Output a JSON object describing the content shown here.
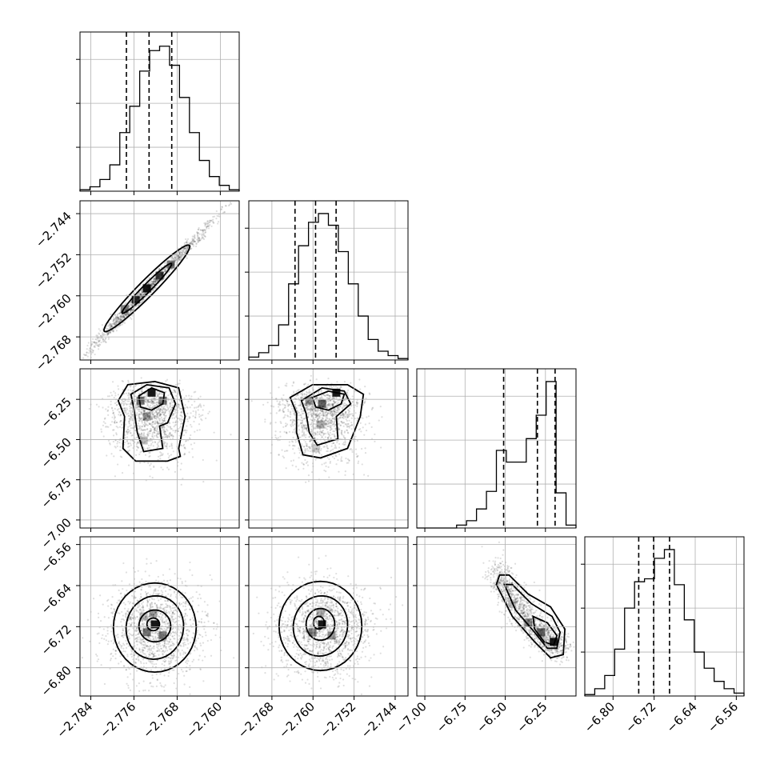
{
  "chart_data": {
    "type": "corner",
    "parameters": [
      {
        "index": 0,
        "range": [
          -2.786,
          -2.7565
        ],
        "ticks": [
          -2.784,
          -2.776,
          -2.768,
          -2.76
        ],
        "tick_labels": [
          "−2.784",
          "−2.776",
          "−2.768",
          "−2.760"
        ],
        "quantiles": [
          -2.7774,
          -2.7732,
          -2.769
        ],
        "mean": -2.7732,
        "sd": 0.0025,
        "hist_max": 1.0
      },
      {
        "index": 1,
        "range": [
          -2.7725,
          -2.7415
        ],
        "ticks": [
          -2.768,
          -2.76,
          -2.752,
          -2.744
        ],
        "tick_labels": [
          "−2.768",
          "−2.760",
          "−2.752",
          "−2.744"
        ],
        "quantiles": [
          -2.7635,
          -2.7595,
          -2.7555
        ],
        "mean": -2.7597,
        "sd": 0.0039,
        "hist_max": 1.0
      },
      {
        "index": 2,
        "range": [
          -7.05,
          -6.06
        ],
        "ticks": [
          -7.0,
          -6.75,
          -6.5,
          -6.25
        ],
        "tick_labels": [
          "−7.00",
          "−6.75",
          "−6.50",
          "−6.25"
        ],
        "quantiles": [
          -6.51,
          -6.3,
          -6.19
        ],
        "hist_max": 1.0
      },
      {
        "index": 3,
        "range": [
          -6.855,
          -6.545
        ],
        "ticks": [
          -6.8,
          -6.72,
          -6.64,
          -6.56
        ],
        "tick_labels": [
          "−6.80",
          "−6.72",
          "−6.64",
          "−6.56"
        ],
        "quantiles": [
          -6.75,
          -6.721,
          -6.69
        ],
        "mean": -6.72,
        "sd": 0.035,
        "hist_max": 1.0
      }
    ],
    "histograms": [
      {
        "param": 0,
        "counts": [
          0.01,
          0.03,
          0.08,
          0.18,
          0.4,
          0.58,
          0.82,
          0.96,
          0.99,
          0.86,
          0.64,
          0.4,
          0.21,
          0.1,
          0.04,
          0.01
        ]
      },
      {
        "param": 1,
        "counts": [
          0.02,
          0.05,
          0.1,
          0.24,
          0.52,
          0.78,
          0.94,
          1.0,
          0.92,
          0.74,
          0.52,
          0.3,
          0.14,
          0.06,
          0.03,
          0.01
        ]
      },
      {
        "param": 2,
        "counts": [
          0.0,
          0.0,
          0.0,
          0.0,
          0.02,
          0.05,
          0.13,
          0.25,
          0.53,
          0.45,
          0.45,
          0.61,
          0.77,
          1.0,
          0.24,
          0.02
        ]
      },
      {
        "param": 3,
        "counts": [
          0.01,
          0.05,
          0.14,
          0.32,
          0.6,
          0.78,
          0.8,
          0.94,
          1.0,
          0.76,
          0.52,
          0.3,
          0.19,
          0.1,
          0.05,
          0.02
        ]
      }
    ],
    "pairs": [
      {
        "row": 1,
        "col": 0,
        "correlation": 0.98
      },
      {
        "row": 2,
        "col": 0,
        "correlation": 0.0
      },
      {
        "row": 2,
        "col": 1,
        "correlation": 0.0
      },
      {
        "row": 3,
        "col": 0,
        "correlation": 0.0
      },
      {
        "row": 3,
        "col": 1,
        "correlation": 0.0
      },
      {
        "row": 3,
        "col": 2,
        "correlation": -0.8
      }
    ],
    "grid": true,
    "quantile_line_style": "dashed"
  }
}
